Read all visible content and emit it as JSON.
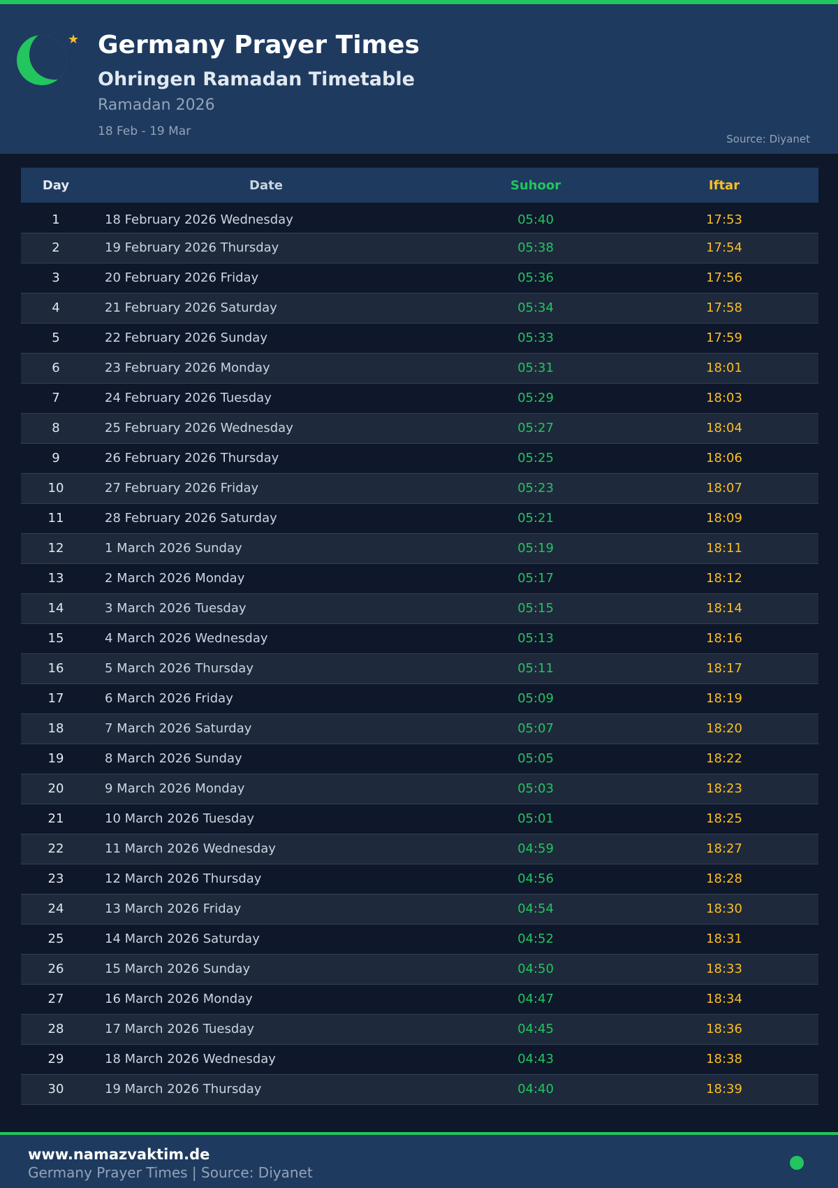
{
  "header": {
    "title": "Germany Prayer Times",
    "subtitle": "Ohringen Ramadan Timetable",
    "year": "Ramadan 2026",
    "range": "18 Feb - 19 Mar",
    "source": "Source: Diyanet"
  },
  "colors": {
    "accent": "#22c55e",
    "iftar": "#fbbf24",
    "header_bg": "#1e3a5f",
    "page_bg": "#0f172a"
  },
  "table": {
    "columns": [
      "Day",
      "Date",
      "Suhoor",
      "Iftar"
    ],
    "rows": [
      [
        "1",
        "18 February 2026 Wednesday",
        "05:40",
        "17:53"
      ],
      [
        "2",
        "19 February 2026 Thursday",
        "05:38",
        "17:54"
      ],
      [
        "3",
        "20 February 2026 Friday",
        "05:36",
        "17:56"
      ],
      [
        "4",
        "21 February 2026 Saturday",
        "05:34",
        "17:58"
      ],
      [
        "5",
        "22 February 2026 Sunday",
        "05:33",
        "17:59"
      ],
      [
        "6",
        "23 February 2026 Monday",
        "05:31",
        "18:01"
      ],
      [
        "7",
        "24 February 2026 Tuesday",
        "05:29",
        "18:03"
      ],
      [
        "8",
        "25 February 2026 Wednesday",
        "05:27",
        "18:04"
      ],
      [
        "9",
        "26 February 2026 Thursday",
        "05:25",
        "18:06"
      ],
      [
        "10",
        "27 February 2026 Friday",
        "05:23",
        "18:07"
      ],
      [
        "11",
        "28 February 2026 Saturday",
        "05:21",
        "18:09"
      ],
      [
        "12",
        "1 March 2026 Sunday",
        "05:19",
        "18:11"
      ],
      [
        "13",
        "2 March 2026 Monday",
        "05:17",
        "18:12"
      ],
      [
        "14",
        "3 March 2026 Tuesday",
        "05:15",
        "18:14"
      ],
      [
        "15",
        "4 March 2026 Wednesday",
        "05:13",
        "18:16"
      ],
      [
        "16",
        "5 March 2026 Thursday",
        "05:11",
        "18:17"
      ],
      [
        "17",
        "6 March 2026 Friday",
        "05:09",
        "18:19"
      ],
      [
        "18",
        "7 March 2026 Saturday",
        "05:07",
        "18:20"
      ],
      [
        "19",
        "8 March 2026 Sunday",
        "05:05",
        "18:22"
      ],
      [
        "20",
        "9 March 2026 Monday",
        "05:03",
        "18:23"
      ],
      [
        "21",
        "10 March 2026 Tuesday",
        "05:01",
        "18:25"
      ],
      [
        "22",
        "11 March 2026 Wednesday",
        "04:59",
        "18:27"
      ],
      [
        "23",
        "12 March 2026 Thursday",
        "04:56",
        "18:28"
      ],
      [
        "24",
        "13 March 2026 Friday",
        "04:54",
        "18:30"
      ],
      [
        "25",
        "14 March 2026 Saturday",
        "04:52",
        "18:31"
      ],
      [
        "26",
        "15 March 2026 Sunday",
        "04:50",
        "18:33"
      ],
      [
        "27",
        "16 March 2026 Monday",
        "04:47",
        "18:34"
      ],
      [
        "28",
        "17 March 2026 Tuesday",
        "04:45",
        "18:36"
      ],
      [
        "29",
        "18 March 2026 Wednesday",
        "04:43",
        "18:38"
      ],
      [
        "30",
        "19 March 2026 Thursday",
        "04:40",
        "18:39"
      ]
    ]
  },
  "footer": {
    "site": "www.namazvaktim.de",
    "text": "Germany Prayer Times | Source: Diyanet"
  }
}
